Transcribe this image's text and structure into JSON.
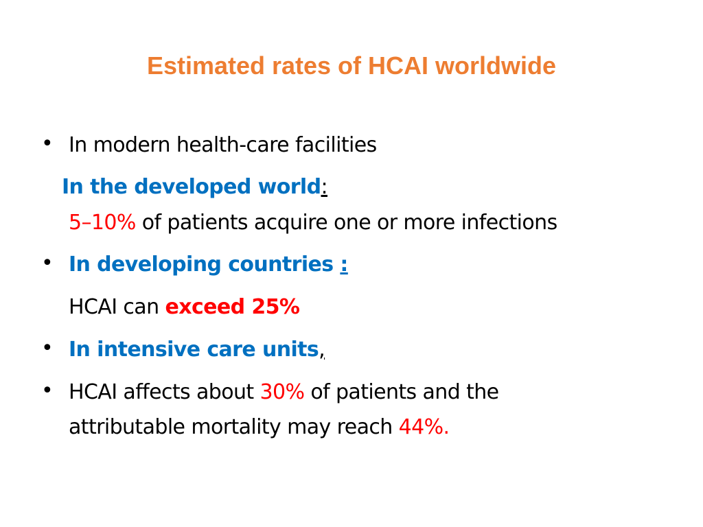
{
  "colors": {
    "title": "#ed7d31",
    "heading_blue": "#0070c0",
    "highlight_red": "#ff0000",
    "text": "#000000"
  },
  "title": "Estimated rates of HCAI worldwide",
  "bullets": {
    "b1_text": "In modern health-care facilities",
    "developed_label": "In the developed world",
    "developed_colon": ":",
    "developed_rate": "5–10%",
    "developed_rest": " of patients acquire one or more infections",
    "b2_label": "In developing countries ",
    "b2_colon": ":",
    "b2_prefix": "HCAI can ",
    "b2_rate": "exceed 25%",
    "b3_label": "In intensive care units",
    "b3_comma": ",",
    "b4_prefix": "HCAI affects about ",
    "b4_rate": "30%",
    "b4_mid": " of patients and the",
    "b4_line2_prefix": "attributable mortality may reach ",
    "b4_mortality": "44%."
  }
}
